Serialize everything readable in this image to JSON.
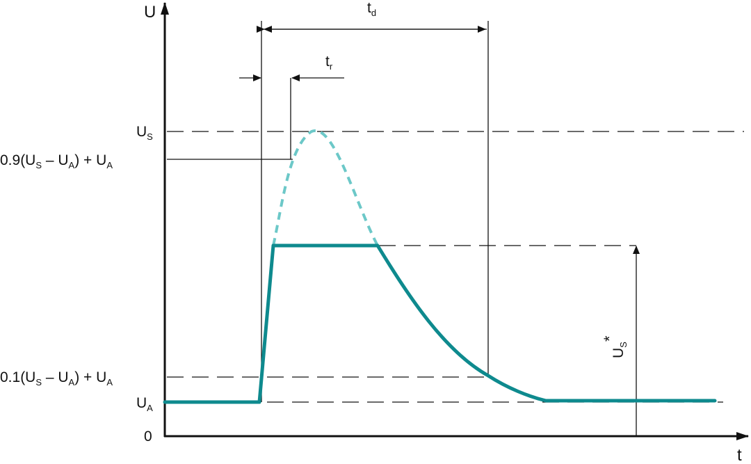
{
  "axes": {
    "y_label": "U",
    "x_label": "t",
    "origin_label": "0"
  },
  "levels": {
    "us": {
      "main": "U",
      "sub": "S"
    },
    "ua": {
      "main": "U",
      "sub": "A"
    },
    "p90": {
      "prefix": "0.9(U",
      "s": "S",
      "mid": " – U",
      "a": "A",
      "suffix": ") + U",
      "a2": "A"
    },
    "p10": {
      "prefix": "0.1(U",
      "s": "S",
      "mid": " – U",
      "a": "A",
      "suffix": ") + U",
      "a2": "A"
    }
  },
  "times": {
    "td": {
      "main": "t",
      "sub": "d"
    },
    "tr": {
      "main": "t",
      "sub": "r"
    }
  },
  "us_star": {
    "main": "U",
    "sub": "S",
    "sup": "*"
  },
  "colors": {
    "pulse": "#0e8a8e",
    "overshoot": "#6cc8c8",
    "lines": "#111111"
  }
}
